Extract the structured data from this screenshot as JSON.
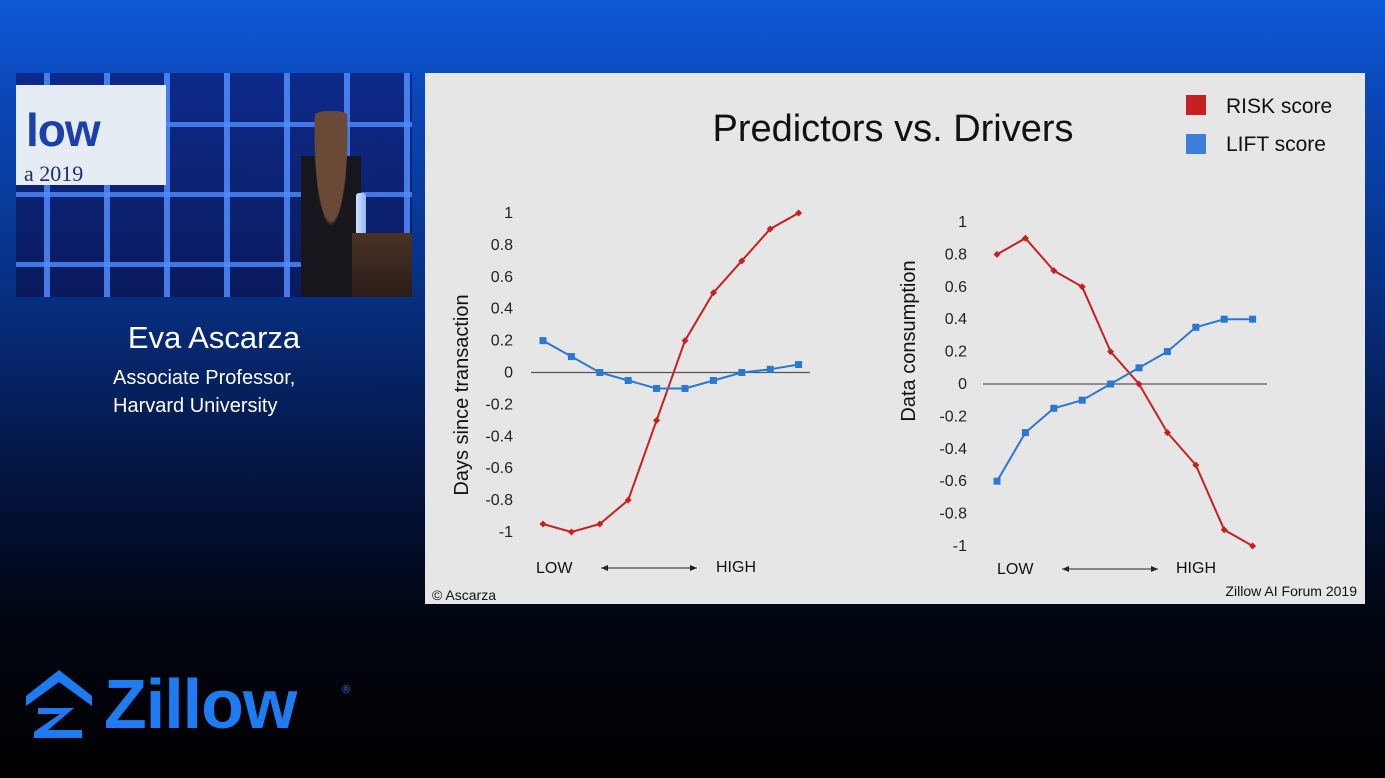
{
  "video": {
    "sign_logo": "low",
    "sign_year": "a 2019"
  },
  "speaker": {
    "name": "Eva Ascarza",
    "title_line1": "Associate Professor,",
    "title_line2": "Harvard University"
  },
  "slide": {
    "title": "Predictors vs. Drivers",
    "copyright": "© Ascarza",
    "event": "Zillow AI Forum 2019",
    "legend": [
      {
        "label": "RISK score",
        "color": "#c82020"
      },
      {
        "label": "LIFT score",
        "color": "#2a78d0"
      }
    ]
  },
  "chart_data": [
    {
      "type": "line",
      "ylabel": "Days since transaction",
      "xlabel_low": "LOW",
      "xlabel_high": "HIGH",
      "x": [
        1,
        2,
        3,
        4,
        5,
        6,
        7,
        8,
        9,
        10
      ],
      "ylim": [
        -1,
        1
      ],
      "yticks": [
        "1",
        "0.8",
        "0.6",
        "0.4",
        "0.2",
        "0",
        "-0.2",
        "-0.4",
        "-0.6",
        "-0.8",
        "-1"
      ],
      "series": [
        {
          "name": "RISK score",
          "color": "#c82020",
          "marker": "diamond",
          "values": [
            -0.95,
            -1.0,
            -0.95,
            -0.8,
            -0.3,
            0.2,
            0.5,
            0.7,
            0.9,
            1.0
          ]
        },
        {
          "name": "LIFT score",
          "color": "#2a78d0",
          "marker": "square",
          "values": [
            0.2,
            0.1,
            0.0,
            -0.05,
            -0.1,
            -0.1,
            -0.05,
            0.0,
            0.02,
            0.05
          ]
        }
      ]
    },
    {
      "type": "line",
      "ylabel": "Data consumption",
      "xlabel_low": "LOW",
      "xlabel_high": "HIGH",
      "x": [
        1,
        2,
        3,
        4,
        5,
        6,
        7,
        8,
        9,
        10
      ],
      "ylim": [
        -1,
        1
      ],
      "yticks": [
        "1",
        "0.8",
        "0.6",
        "0.4",
        "0.2",
        "0",
        "-0.2",
        "-0.4",
        "-0.6",
        "-0.8",
        "-1"
      ],
      "series": [
        {
          "name": "RISK score",
          "color": "#c82020",
          "marker": "diamond",
          "values": [
            0.8,
            0.9,
            0.7,
            0.6,
            0.2,
            0.0,
            -0.3,
            -0.5,
            -0.9,
            -1.0
          ]
        },
        {
          "name": "LIFT score",
          "color": "#2a78d0",
          "marker": "square",
          "values": [
            -0.6,
            -0.3,
            -0.15,
            -0.1,
            0.0,
            0.1,
            0.2,
            0.35,
            0.4,
            0.4
          ]
        }
      ]
    }
  ],
  "brand": {
    "logo_text": "Zillow",
    "registered": "®",
    "color": "#1d7cf2"
  }
}
